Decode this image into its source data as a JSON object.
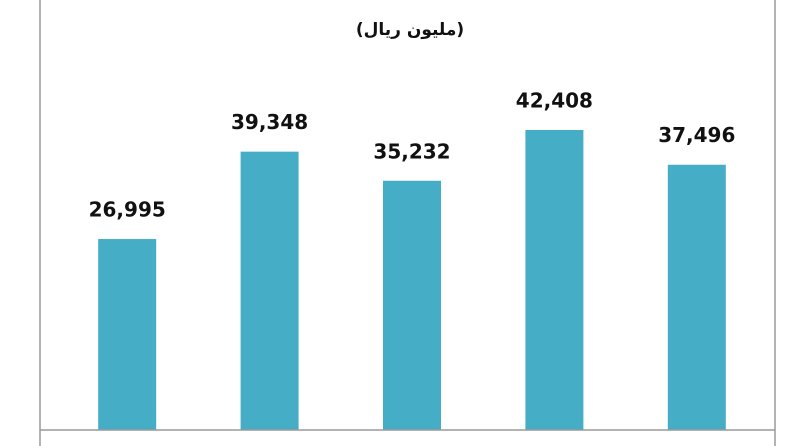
{
  "chart_data": {
    "type": "bar",
    "subtitle": "(مليون ريال)",
    "values": [
      26995,
      39348,
      35232,
      42408,
      37496
    ],
    "value_labels": [
      "26,995",
      "39,348",
      "35,232",
      "42,408",
      "37,496"
    ],
    "color": "#45aec6"
  }
}
